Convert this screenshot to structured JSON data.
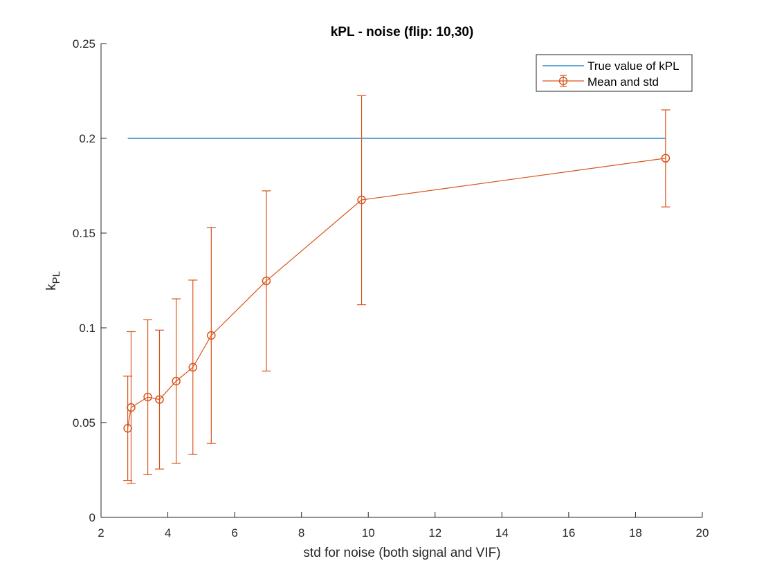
{
  "chart_data": {
    "type": "line",
    "title": "kPL - noise (flip: 10,30)",
    "xlabel": "std for noise (both signal and VIF)",
    "ylabel_main": "k",
    "ylabel_sub": "PL",
    "xlim": [
      2,
      20
    ],
    "ylim": [
      0,
      0.25
    ],
    "xticks": [
      2,
      4,
      6,
      8,
      10,
      12,
      14,
      16,
      18,
      20
    ],
    "xtick_labels": [
      "2",
      "4",
      "6",
      "8",
      "10",
      "12",
      "14",
      "16",
      "18",
      "20"
    ],
    "yticks": [
      0,
      0.05,
      0.1,
      0.15,
      0.2,
      0.25
    ],
    "ytick_labels": [
      "0",
      "0.05",
      "0.1",
      "0.15",
      "0.2",
      "0.25"
    ],
    "grid": false,
    "legend_position": "top-right",
    "series": [
      {
        "name": "True value of kPL",
        "kind": "line",
        "color": "#0072BD",
        "x": [
          2.8,
          18.9
        ],
        "y": [
          0.2,
          0.2
        ]
      },
      {
        "name": "Mean and std",
        "kind": "errorbar",
        "color": "#D95319",
        "marker": "circle",
        "x": [
          2.8,
          2.9,
          3.4,
          3.75,
          4.25,
          4.75,
          5.3,
          6.95,
          9.8,
          18.9
        ],
        "y": [
          0.047,
          0.058,
          0.0635,
          0.0622,
          0.0719,
          0.0792,
          0.096,
          0.1248,
          0.1675,
          0.1895
        ],
        "yerr_lower": [
          0.0195,
          0.018,
          0.0225,
          0.0255,
          0.0285,
          0.0332,
          0.039,
          0.0772,
          0.1122,
          0.1638
        ],
        "yerr_upper": [
          0.0745,
          0.098,
          0.1043,
          0.0988,
          0.1153,
          0.1252,
          0.153,
          0.1723,
          0.2225,
          0.215
        ]
      }
    ]
  }
}
